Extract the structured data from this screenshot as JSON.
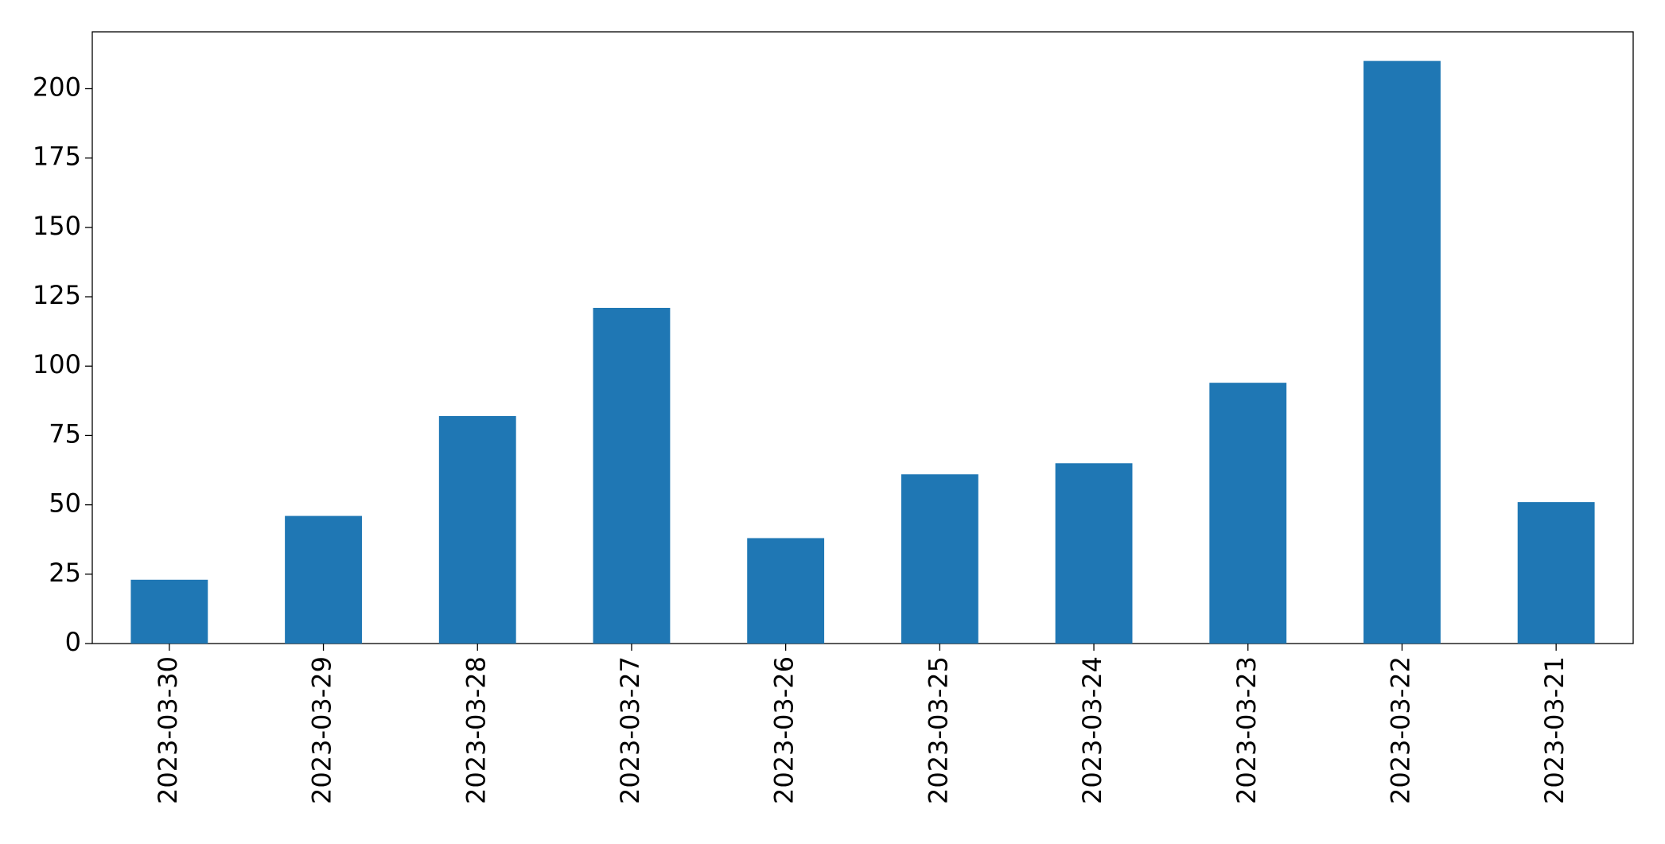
{
  "chart_data": {
    "type": "bar",
    "categories": [
      "2023-03-30",
      "2023-03-29",
      "2023-03-28",
      "2023-03-27",
      "2023-03-26",
      "2023-03-25",
      "2023-03-24",
      "2023-03-23",
      "2023-03-22",
      "2023-03-21"
    ],
    "values": [
      23,
      46,
      82,
      121,
      38,
      61,
      65,
      94,
      210,
      51
    ],
    "color": "#1f77b4",
    "ylim": [
      0,
      220.5
    ],
    "yticks": [
      0,
      25,
      50,
      75,
      100,
      125,
      150,
      175,
      200
    ],
    "grid": false
  }
}
